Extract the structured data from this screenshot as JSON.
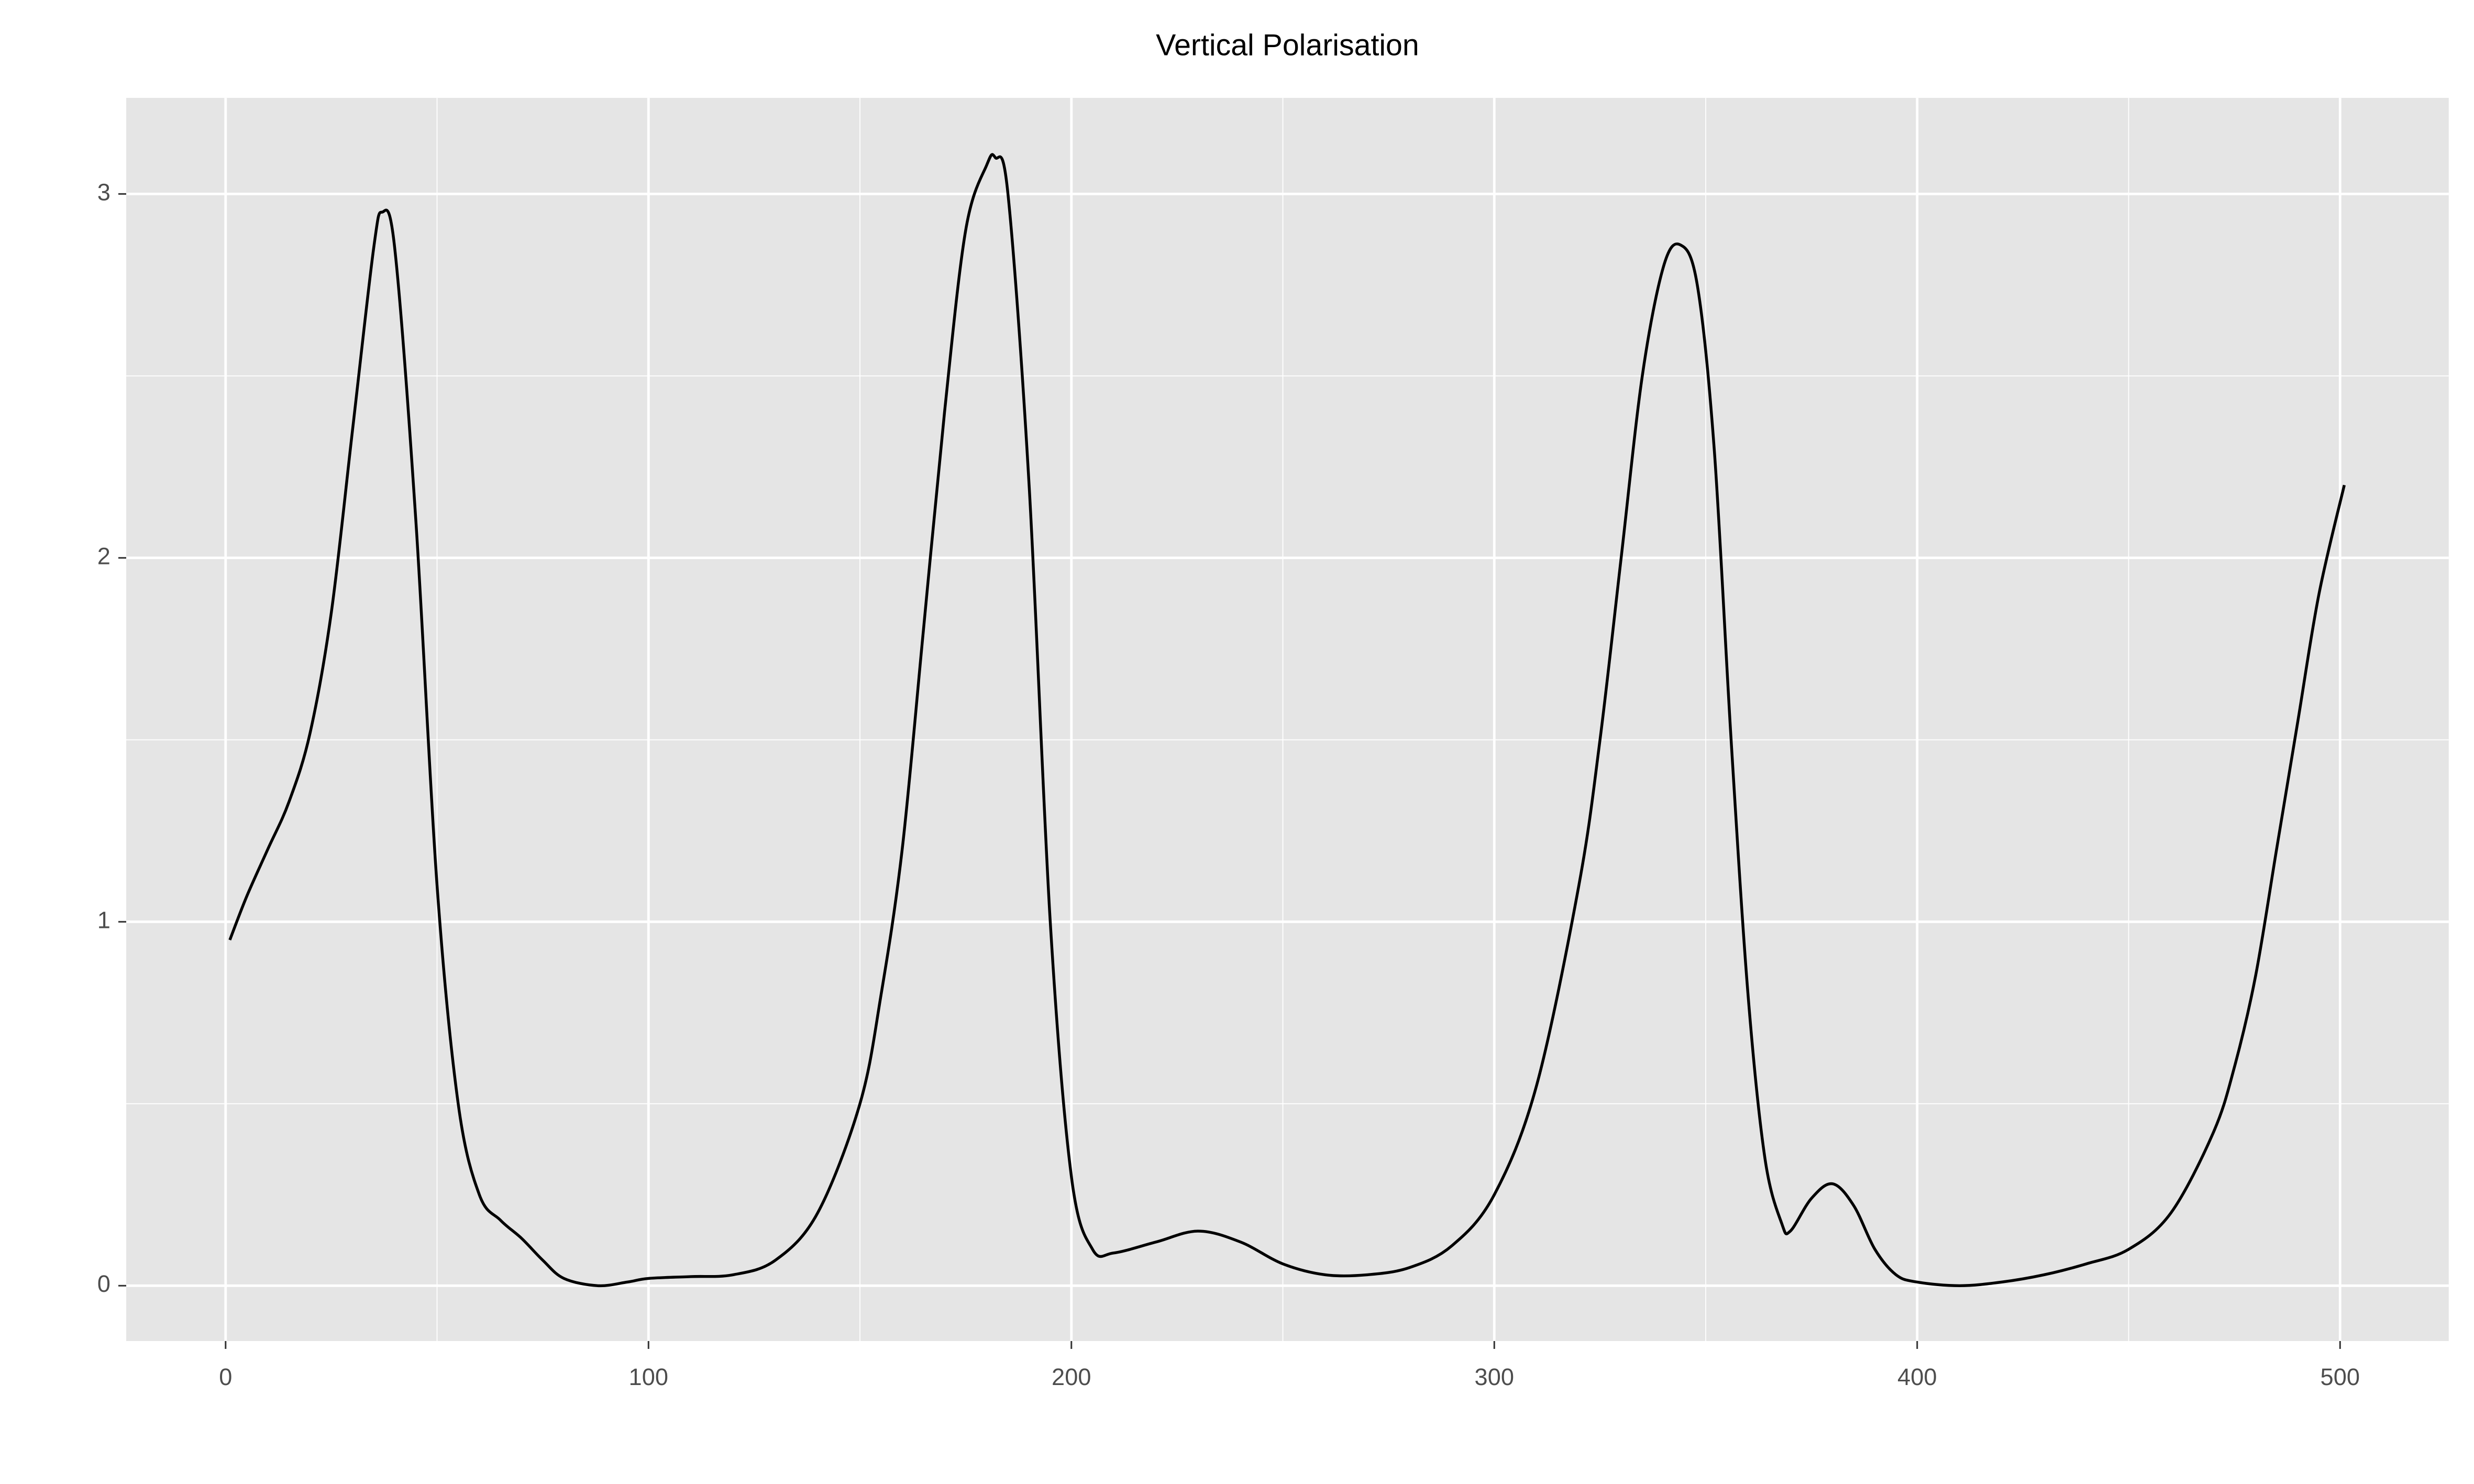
{
  "chart_data": {
    "type": "line",
    "title": "Vertical Polarisation",
    "x": [
      1,
      5,
      10,
      15,
      20,
      25,
      30,
      35,
      37,
      40,
      45,
      50,
      55,
      60,
      65,
      70,
      75,
      80,
      88,
      95,
      100,
      110,
      120,
      130,
      140,
      150,
      155,
      160,
      165,
      170,
      175,
      180,
      182,
      185,
      190,
      195,
      200,
      205,
      210,
      220,
      230,
      240,
      250,
      260,
      270,
      280,
      290,
      300,
      310,
      320,
      325,
      330,
      335,
      340,
      344,
      348,
      352,
      356,
      360,
      364,
      368,
      370,
      375,
      380,
      385,
      390,
      395,
      400,
      410,
      420,
      430,
      440,
      450,
      460,
      470,
      475,
      480,
      485,
      490,
      495,
      501
    ],
    "series": [
      {
        "color": "#000000",
        "values": [
          0.95,
          1.07,
          1.2,
          1.33,
          1.52,
          1.85,
          2.35,
          2.85,
          2.95,
          2.85,
          2.1,
          1.1,
          0.5,
          0.25,
          0.18,
          0.13,
          0.07,
          0.02,
          0.0,
          0.01,
          0.02,
          0.025,
          0.03,
          0.07,
          0.2,
          0.5,
          0.8,
          1.2,
          1.8,
          2.4,
          2.9,
          3.08,
          3.1,
          3.0,
          2.2,
          1.0,
          0.3,
          0.1,
          0.09,
          0.12,
          0.15,
          0.12,
          0.06,
          0.03,
          0.03,
          0.05,
          0.11,
          0.25,
          0.55,
          1.1,
          1.5,
          2.0,
          2.5,
          2.8,
          2.86,
          2.75,
          2.3,
          1.5,
          0.8,
          0.35,
          0.17,
          0.15,
          0.24,
          0.28,
          0.22,
          0.1,
          0.03,
          0.01,
          0.0,
          0.01,
          0.03,
          0.06,
          0.1,
          0.2,
          0.42,
          0.6,
          0.85,
          1.2,
          1.55,
          1.9,
          2.2
        ]
      }
    ],
    "xlim": [
      -23.5,
      525.7
    ],
    "ylim": [
      -0.152,
      3.264
    ],
    "xticks": [
      0,
      100,
      200,
      300,
      400,
      500
    ],
    "yticks": [
      0,
      1,
      2,
      3
    ],
    "x_minor_ticks": [
      50,
      150,
      250,
      350,
      450
    ],
    "y_minor_ticks": [
      0.5,
      1.5,
      2.5
    ],
    "grid": true
  }
}
